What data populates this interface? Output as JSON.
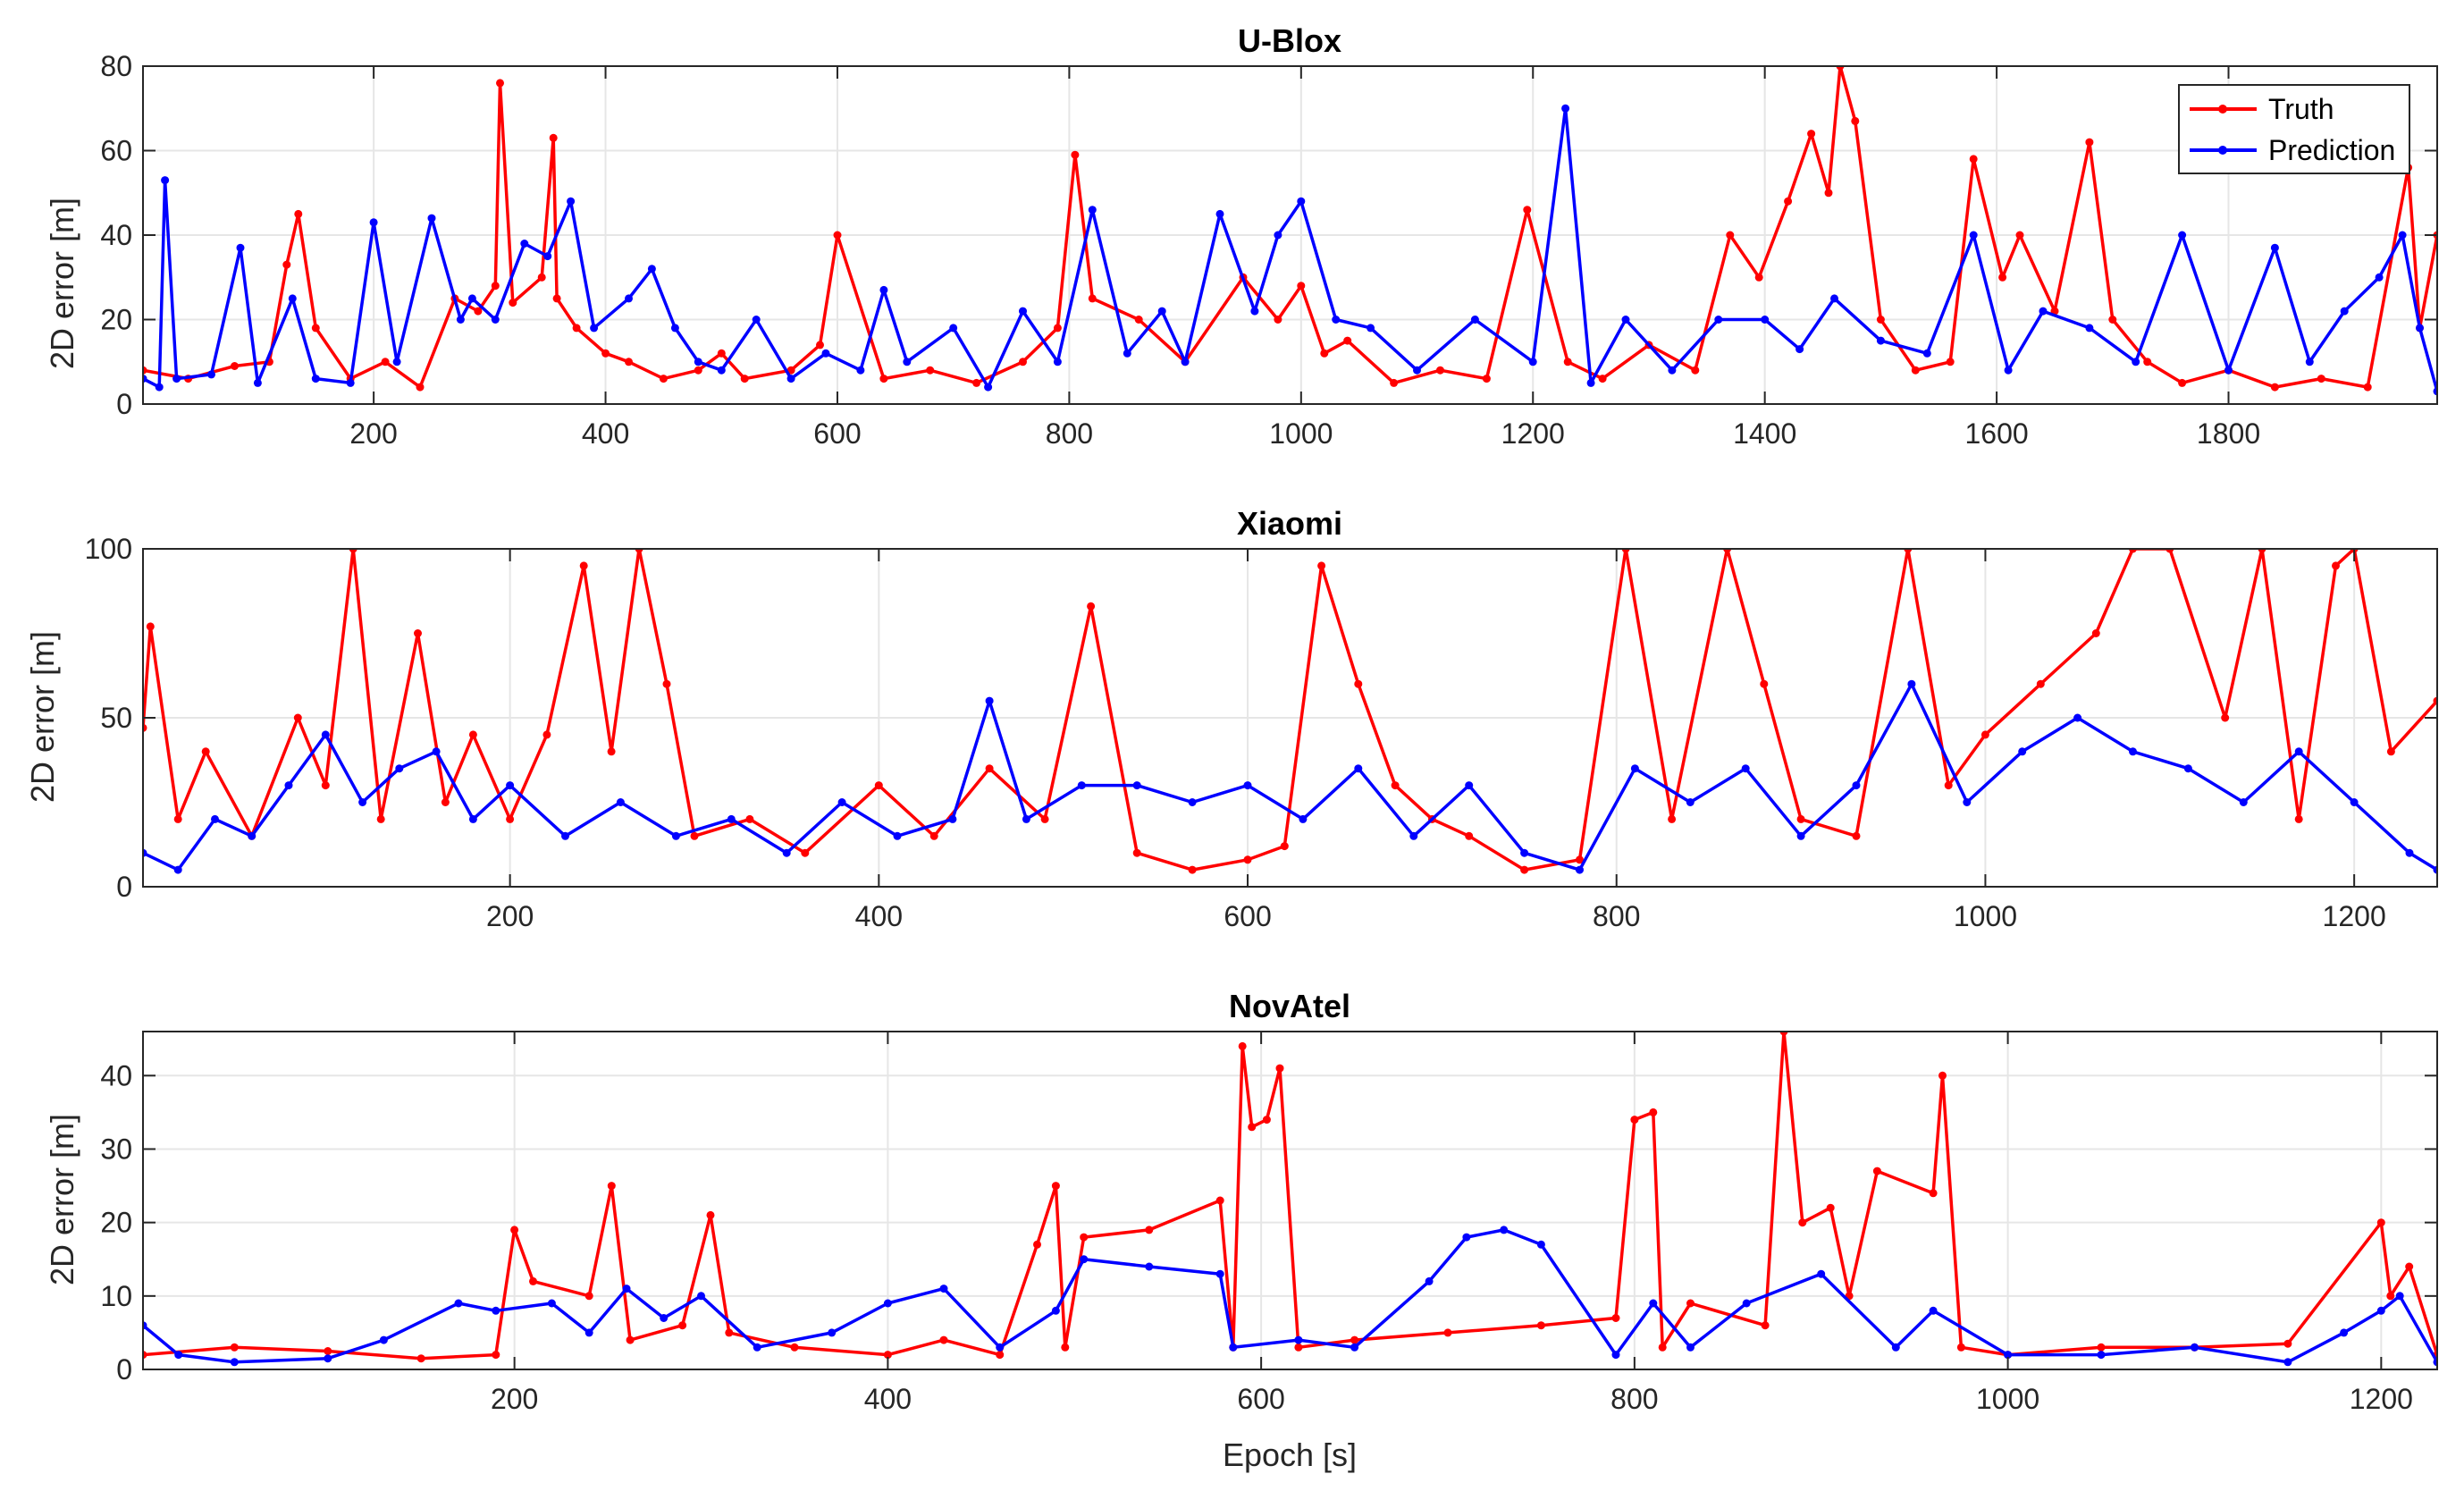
{
  "chart_data": [
    {
      "type": "line",
      "title": "U-Blox",
      "xlabel": "",
      "ylabel": "2D error [m]",
      "xlim": [
        1,
        1980
      ],
      "ylim": [
        0,
        80
      ],
      "xticks": [
        200,
        400,
        600,
        800,
        1000,
        1200,
        1400,
        1600,
        1800
      ],
      "yticks": [
        0,
        20,
        40,
        60,
        80
      ],
      "grid": true,
      "legend": {
        "position": "top-right",
        "entries": [
          "Truth",
          "Prediction"
        ]
      },
      "series": [
        {
          "name": "Truth",
          "color": "#ff0000",
          "x": [
            1,
            40,
            80,
            110,
            125,
            135,
            150,
            180,
            210,
            240,
            270,
            290,
            305,
            309,
            320,
            345,
            355,
            358,
            375,
            400,
            420,
            450,
            480,
            500,
            520,
            560,
            585,
            600,
            640,
            680,
            720,
            760,
            790,
            805,
            820,
            860,
            900,
            950,
            980,
            1000,
            1020,
            1040,
            1080,
            1120,
            1160,
            1195,
            1230,
            1260,
            1300,
            1340,
            1370,
            1395,
            1420,
            1440,
            1455,
            1465,
            1478,
            1500,
            1530,
            1560,
            1580,
            1605,
            1620,
            1650,
            1680,
            1700,
            1730,
            1760,
            1800,
            1840,
            1880,
            1920,
            1955,
            1965,
            1980
          ],
          "y": [
            8,
            6,
            9,
            10,
            33,
            45,
            18,
            6,
            10,
            4,
            25,
            22,
            28,
            76,
            24,
            30,
            63,
            25,
            18,
            12,
            10,
            6,
            8,
            12,
            6,
            8,
            14,
            40,
            6,
            8,
            5,
            10,
            18,
            59,
            25,
            20,
            10,
            30,
            20,
            28,
            12,
            15,
            5,
            8,
            6,
            46,
            10,
            6,
            14,
            8,
            40,
            30,
            48,
            64,
            50,
            80,
            67,
            20,
            8,
            10,
            58,
            30,
            40,
            22,
            62,
            20,
            10,
            5,
            8,
            4,
            6,
            4,
            56,
            18,
            40
          ]
        },
        {
          "name": "Prediction",
          "color": "#0000ff",
          "x": [
            1,
            15,
            20,
            30,
            60,
            85,
            100,
            130,
            150,
            180,
            200,
            220,
            250,
            275,
            285,
            305,
            330,
            350,
            370,
            390,
            420,
            440,
            460,
            480,
            500,
            530,
            560,
            590,
            620,
            640,
            660,
            700,
            730,
            760,
            790,
            820,
            850,
            880,
            900,
            930,
            960,
            980,
            1000,
            1030,
            1060,
            1100,
            1150,
            1200,
            1228,
            1250,
            1280,
            1320,
            1360,
            1400,
            1430,
            1460,
            1500,
            1540,
            1580,
            1610,
            1640,
            1680,
            1720,
            1760,
            1800,
            1840,
            1870,
            1900,
            1930,
            1950,
            1965,
            1980
          ],
          "y": [
            6,
            4,
            53,
            6,
            7,
            37,
            5,
            25,
            6,
            5,
            43,
            10,
            44,
            20,
            25,
            20,
            38,
            35,
            48,
            18,
            25,
            32,
            18,
            10,
            8,
            20,
            6,
            12,
            8,
            27,
            10,
            18,
            4,
            22,
            10,
            46,
            12,
            22,
            10,
            45,
            22,
            40,
            48,
            20,
            18,
            8,
            20,
            10,
            70,
            5,
            20,
            8,
            20,
            20,
            13,
            25,
            15,
            12,
            40,
            8,
            22,
            18,
            10,
            40,
            8,
            37,
            10,
            22,
            30,
            40,
            18,
            3
          ]
        }
      ]
    },
    {
      "type": "line",
      "title": "Xiaomi",
      "xlabel": "",
      "ylabel": "2D error [m]",
      "xlim": [
        1,
        1245
      ],
      "ylim": [
        0,
        100
      ],
      "xticks": [
        200,
        400,
        600,
        800,
        1000,
        1200
      ],
      "yticks": [
        0,
        50,
        100
      ],
      "grid": true,
      "series": [
        {
          "name": "Truth",
          "color": "#ff0000",
          "x": [
            1,
            5,
            20,
            35,
            60,
            85,
            100,
            115,
            130,
            150,
            165,
            180,
            200,
            220,
            240,
            255,
            270,
            285,
            300,
            330,
            360,
            400,
            430,
            460,
            490,
            515,
            540,
            570,
            600,
            620,
            640,
            660,
            680,
            700,
            720,
            750,
            780,
            805,
            830,
            860,
            880,
            900,
            930,
            958,
            980,
            1000,
            1030,
            1060,
            1080,
            1100,
            1130,
            1150,
            1170,
            1190,
            1200,
            1220,
            1245
          ],
          "y": [
            47,
            77,
            20,
            40,
            15,
            50,
            30,
            100,
            20,
            75,
            25,
            45,
            20,
            45,
            95,
            40,
            100,
            60,
            15,
            20,
            10,
            30,
            15,
            35,
            20,
            83,
            10,
            5,
            8,
            12,
            95,
            60,
            30,
            20,
            15,
            5,
            8,
            100,
            20,
            100,
            60,
            20,
            15,
            100,
            30,
            45,
            60,
            75,
            100,
            100,
            50,
            100,
            20,
            95,
            100,
            40,
            55
          ]
        },
        {
          "name": "Prediction",
          "color": "#0000ff",
          "x": [
            1,
            20,
            40,
            60,
            80,
            100,
            120,
            140,
            160,
            180,
            200,
            230,
            260,
            290,
            320,
            350,
            380,
            410,
            440,
            460,
            480,
            510,
            540,
            570,
            600,
            630,
            660,
            690,
            720,
            750,
            780,
            810,
            840,
            870,
            900,
            930,
            960,
            990,
            1020,
            1050,
            1080,
            1110,
            1140,
            1170,
            1200,
            1230,
            1245
          ],
          "y": [
            10,
            5,
            20,
            15,
            30,
            45,
            25,
            35,
            40,
            20,
            30,
            15,
            25,
            15,
            20,
            10,
            25,
            15,
            20,
            55,
            20,
            30,
            30,
            25,
            30,
            20,
            35,
            15,
            30,
            10,
            5,
            35,
            25,
            35,
            15,
            30,
            60,
            25,
            40,
            50,
            40,
            35,
            25,
            40,
            25,
            10,
            5
          ]
        }
      ]
    },
    {
      "type": "line",
      "title": "NovAtel",
      "xlabel": "Epoch [s]",
      "ylabel": "2D error [m]",
      "xlim": [
        1,
        1230
      ],
      "ylim": [
        0,
        46
      ],
      "xticks": [
        200,
        400,
        600,
        800,
        1000,
        1200
      ],
      "yticks": [
        0,
        10,
        20,
        30,
        40
      ],
      "grid": true,
      "series": [
        {
          "name": "Truth",
          "color": "#ff0000",
          "x": [
            1,
            50,
            100,
            150,
            190,
            200,
            210,
            240,
            252,
            262,
            290,
            305,
            315,
            350,
            400,
            430,
            460,
            480,
            490,
            495,
            505,
            540,
            578,
            585,
            590,
            595,
            603,
            610,
            620,
            650,
            700,
            750,
            790,
            800,
            810,
            815,
            830,
            870,
            880,
            890,
            905,
            915,
            930,
            960,
            965,
            975,
            1000,
            1050,
            1100,
            1150,
            1200,
            1205,
            1215,
            1230
          ],
          "y": [
            2,
            3,
            2.5,
            1.5,
            2,
            19,
            12,
            10,
            25,
            4,
            6,
            21,
            5,
            3,
            2,
            4,
            2,
            17,
            25,
            3,
            18,
            19,
            23,
            3,
            44,
            33,
            34,
            41,
            3,
            4,
            5,
            6,
            7,
            34,
            35,
            3,
            9,
            6,
            46,
            20,
            22,
            10,
            27,
            24,
            40,
            3,
            2,
            3,
            3,
            3.5,
            20,
            10,
            14,
            2
          ]
        },
        {
          "name": "Prediction",
          "color": "#0000ff",
          "x": [
            1,
            20,
            50,
            100,
            130,
            170,
            190,
            220,
            240,
            260,
            280,
            300,
            330,
            370,
            400,
            430,
            460,
            490,
            505,
            540,
            578,
            585,
            620,
            650,
            690,
            710,
            730,
            750,
            790,
            810,
            830,
            860,
            900,
            940,
            960,
            1000,
            1050,
            1100,
            1150,
            1180,
            1200,
            1210,
            1230
          ],
          "y": [
            6,
            2,
            1,
            1.5,
            4,
            9,
            8,
            9,
            5,
            11,
            7,
            10,
            3,
            5,
            9,
            11,
            3,
            8,
            15,
            14,
            13,
            3,
            4,
            3,
            12,
            18,
            19,
            17,
            2,
            9,
            3,
            9,
            13,
            3,
            8,
            2,
            2,
            3,
            1,
            5,
            8,
            10,
            1
          ]
        }
      ]
    }
  ]
}
